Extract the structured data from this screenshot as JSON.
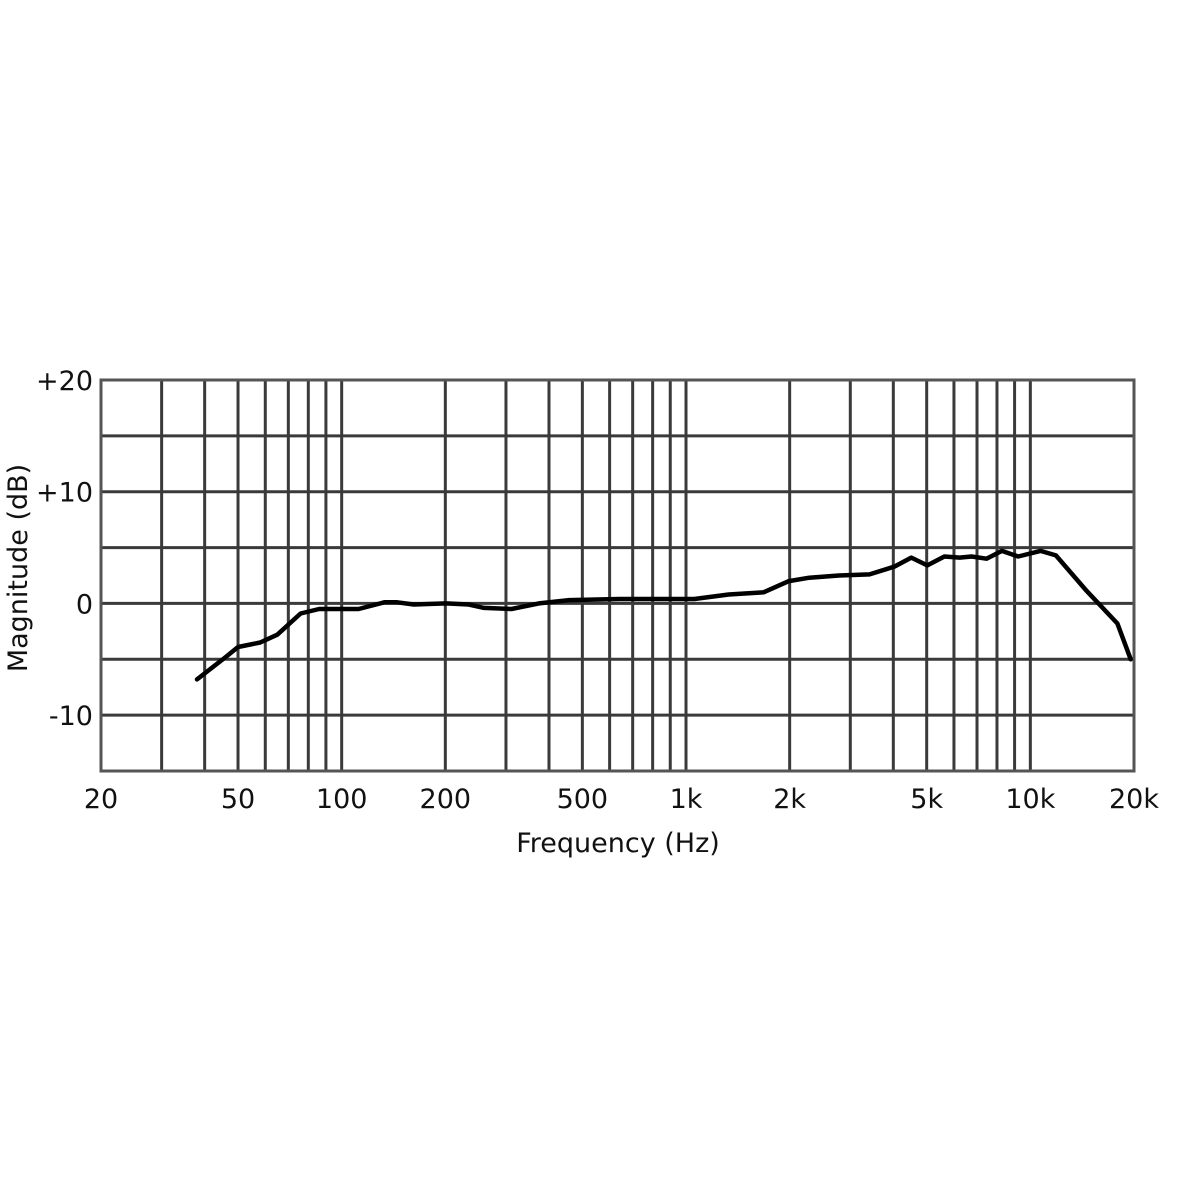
{
  "chart_data": {
    "type": "line",
    "x_label": "Frequency (Hz)",
    "y_label": "Magnitude (dB)",
    "x_scale": "log",
    "xlim": [
      20,
      20000
    ],
    "xticks": [
      20,
      50,
      100,
      200,
      500,
      {
        "value": 1000,
        "label": "1k"
      },
      {
        "value": 2000,
        "label": "2k"
      },
      {
        "value": 5000,
        "label": "5k"
      },
      {
        "value": 10000,
        "label": "10k"
      },
      {
        "value": 20000,
        "label": "20k"
      }
    ],
    "xgrid": [
      30,
      40,
      50,
      60,
      70,
      80,
      90,
      100,
      200,
      300,
      400,
      500,
      600,
      700,
      800,
      900,
      1000,
      2000,
      3000,
      4000,
      5000,
      6000,
      7000,
      8000,
      9000,
      10000
    ],
    "ylim": [
      -15,
      20
    ],
    "yticks": [
      -10,
      0,
      {
        "value": 10,
        "label": "+10"
      },
      {
        "value": 20,
        "label": "+20"
      }
    ],
    "ygrid": [
      -10,
      -5,
      0,
      5,
      10,
      15
    ],
    "grid": true,
    "series": [
      {
        "color": "#000000",
        "x": [
          38,
          46,
          50,
          58,
          65,
          76,
          86,
          100,
          112,
          133,
          145,
          162,
          201,
          234,
          259,
          311,
          374,
          458,
          640,
          838,
          1057,
          1330,
          1680,
          1990,
          2280,
          2780,
          3410,
          4030,
          4510,
          5020,
          5630,
          6230,
          6750,
          7460,
          8270,
          9220,
          10700,
          11860,
          14590,
          17900,
          19570
        ],
        "values": [
          -6.8,
          -4.8,
          -3.9,
          -3.5,
          -2.8,
          -0.9,
          -0.5,
          -0.5,
          -0.5,
          0.1,
          0.1,
          -0.1,
          0,
          -0.1,
          -0.4,
          -0.5,
          0,
          0.3,
          0.4,
          0.4,
          0.4,
          0.8,
          1.0,
          2.0,
          2.3,
          2.5,
          2.6,
          3.3,
          4.1,
          3.4,
          4.2,
          4.1,
          4.2,
          4.0,
          4.7,
          4.2,
          4.7,
          4.3,
          1.1,
          -1.8,
          -5.0
        ]
      }
    ]
  }
}
